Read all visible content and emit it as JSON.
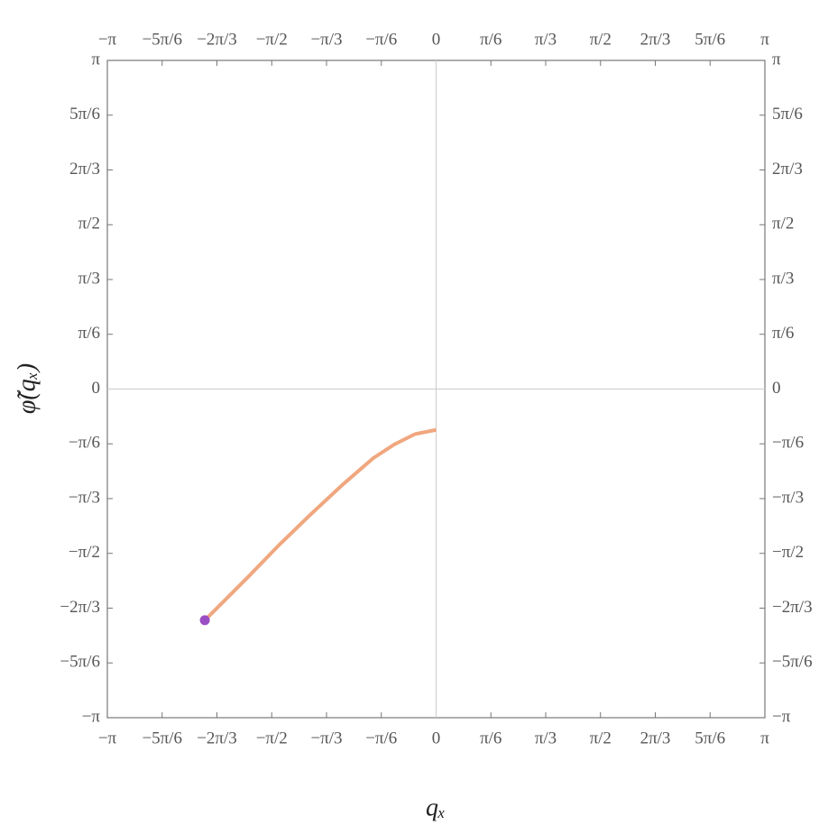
{
  "chart_data": {
    "type": "line",
    "xlabel": "qₓ",
    "ylabel": "φ̃(qₓ)",
    "xlim": [
      -3.14159,
      3.14159
    ],
    "ylim": [
      -3.14159,
      3.14159
    ],
    "xticks": [
      {
        "value": -3.14159,
        "label": "−π"
      },
      {
        "value": -2.61799,
        "label": "−5π/6"
      },
      {
        "value": -2.0944,
        "label": "−2π/3"
      },
      {
        "value": -1.5708,
        "label": "−π/2"
      },
      {
        "value": -1.0472,
        "label": "−π/3"
      },
      {
        "value": -0.5236,
        "label": "−π/6"
      },
      0,
      {
        "value": 0.5236,
        "label": "π/6"
      },
      {
        "value": 1.0472,
        "label": "π/3"
      },
      {
        "value": 1.5708,
        "label": "π/2"
      },
      {
        "value": 2.0944,
        "label": "2π/3"
      },
      {
        "value": 2.61799,
        "label": "5π/6"
      },
      {
        "value": 3.14159,
        "label": "π"
      }
    ],
    "yticks": [
      {
        "value": -3.14159,
        "label": "−π"
      },
      {
        "value": -2.61799,
        "label": "−5π/6"
      },
      {
        "value": -2.0944,
        "label": "−2π/3"
      },
      {
        "value": -1.5708,
        "label": "−π/2"
      },
      {
        "value": -1.0472,
        "label": "−π/3"
      },
      {
        "value": -0.5236,
        "label": "−π/6"
      },
      0,
      {
        "value": 0.5236,
        "label": "π/6"
      },
      {
        "value": 1.0472,
        "label": "π/3"
      },
      {
        "value": 1.5708,
        "label": "π/2"
      },
      {
        "value": 2.0944,
        "label": "2π/3"
      },
      {
        "value": 2.61799,
        "label": "5π/6"
      },
      {
        "value": 3.14159,
        "label": "π"
      }
    ],
    "series": [
      {
        "color": "#f0a77f",
        "x": [
          -2.21,
          -1.8,
          -1.5,
          -1.2,
          -0.9,
          -0.6,
          -0.4,
          -0.2,
          0
        ],
        "values": [
          -2.21,
          -1.8,
          -1.49,
          -1.2,
          -0.92,
          -0.66,
          -0.53,
          -0.43,
          -0.39
        ]
      }
    ],
    "point": {
      "x": -2.21,
      "y": -2.21,
      "color": "#9b4dc4"
    }
  }
}
